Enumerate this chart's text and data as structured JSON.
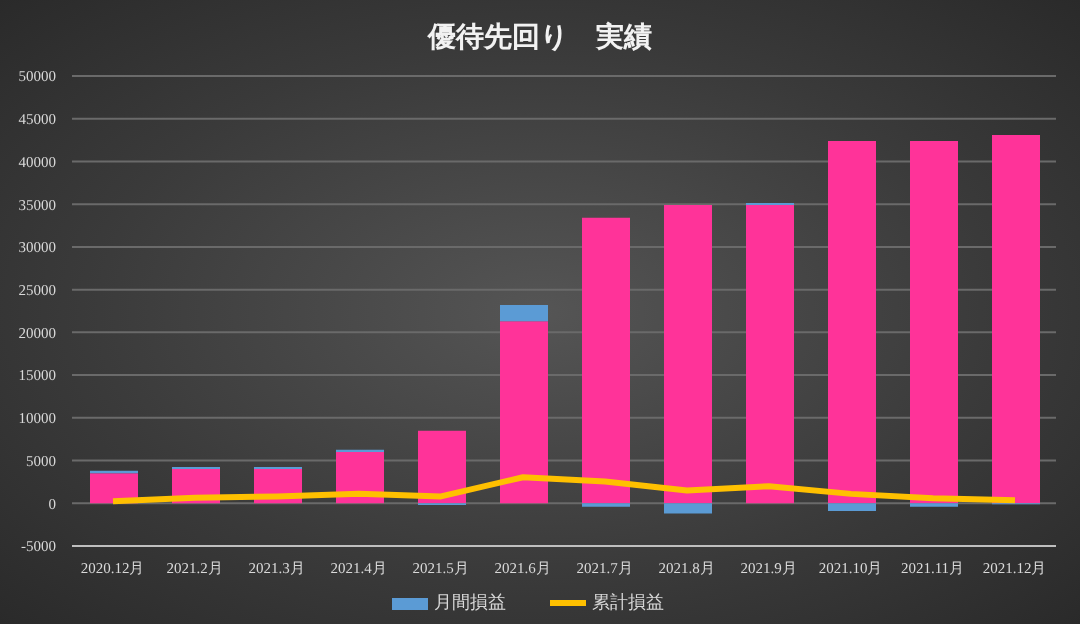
{
  "chart_data": {
    "type": "bar",
    "title": "優待先回り　実績",
    "stacked": true,
    "categories": [
      "2020.12月",
      "2021.2月",
      "2021.3月",
      "2021.4月",
      "2021.5月",
      "2021.6月",
      "2021.7月",
      "2021.8月",
      "2021.9月",
      "2021.10月",
      "2021.11月",
      "2021.12月"
    ],
    "series": [
      {
        "color": "#ff3399",
        "values": [
          3500,
          4000,
          4000,
          6000,
          8500,
          21300,
          33400,
          34900,
          34900,
          42400,
          42400,
          43100
        ]
      },
      {
        "name": "月間損益",
        "color": "#5b9bd5",
        "values": [
          300,
          250,
          250,
          250,
          -200,
          1900,
          -400,
          -1200,
          250,
          -900,
          -400,
          -100
        ]
      },
      {
        "name": "累計損益",
        "type": "line",
        "color": "#ffc000",
        "values": [
          250,
          650,
          800,
          1100,
          800,
          3050,
          2550,
          1500,
          2000,
          1100,
          600,
          350
        ]
      }
    ],
    "ylim": [
      -5000,
      50000
    ],
    "yticks": [
      -5000,
      0,
      5000,
      10000,
      15000,
      20000,
      25000,
      30000,
      35000,
      40000,
      45000,
      50000
    ],
    "grid": "y",
    "legend": "bottom"
  }
}
